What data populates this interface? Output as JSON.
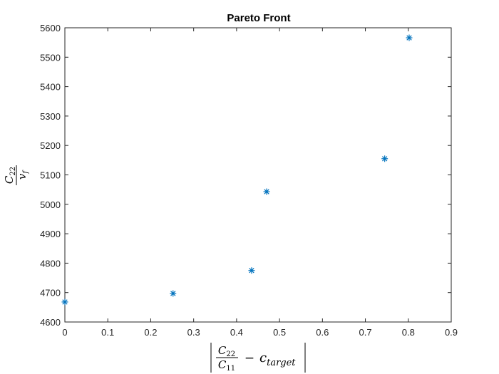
{
  "chart_data": {
    "type": "scatter",
    "title": "Pareto Front",
    "xlabel": "|C22/C11 − c_target|",
    "ylabel": "C22/v_f",
    "xlabel_parts": {
      "numer_letter": "C",
      "numer_sub": "22",
      "denom_letter": "C",
      "denom_sub": "11",
      "minus": "−",
      "c": "c",
      "c_sub": "target"
    },
    "ylabel_parts": {
      "numer_letter": "C",
      "numer_sub": "22",
      "denom_letter": "v",
      "denom_sub": "f"
    },
    "xlim": [
      0,
      0.9
    ],
    "ylim": [
      4600,
      5600
    ],
    "xticks": [
      "0",
      "0.1",
      "0.2",
      "0.3",
      "0.4",
      "0.5",
      "0.6",
      "0.7",
      "0.8",
      "0.9"
    ],
    "yticks": [
      "4600",
      "4700",
      "4800",
      "4900",
      "5000",
      "5100",
      "5200",
      "5300",
      "5400",
      "5500",
      "5600"
    ],
    "grid": false,
    "marker": "*",
    "marker_color": "#0072BD",
    "x": [
      0.0,
      0.252,
      0.435,
      0.47,
      0.745,
      0.802
    ],
    "y": [
      4668,
      4697,
      4775,
      5043,
      5155,
      5566
    ]
  }
}
